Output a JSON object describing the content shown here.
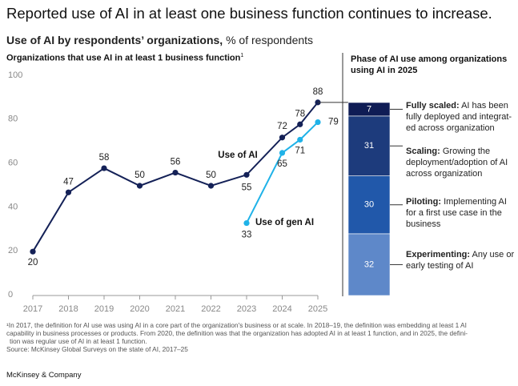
{
  "header": {
    "title": "Reported use of AI in at least one business function continues to increase.",
    "subtitle_bold": "Use of AI by respondents’ organizations,",
    "subtitle_rest": "% of respondents"
  },
  "chart_data": [
    {
      "type": "line",
      "title": "Organizations that use AI in at least 1 business function",
      "title_note": "1",
      "xlim": [
        2017,
        2025
      ],
      "xticks": [
        2017,
        2018,
        2019,
        2020,
        2021,
        2022,
        2023,
        2024,
        2025
      ],
      "ylim": [
        0,
        100
      ],
      "yticks": [
        0,
        20,
        40,
        60,
        80,
        100
      ],
      "grid": false,
      "series": [
        {
          "name": "Use of AI",
          "color": "#142157",
          "x": [
            2017,
            2018,
            2019,
            2020,
            2021,
            2022,
            2023,
            2024,
            2024.5,
            2025
          ],
          "values": [
            20,
            47,
            58,
            50,
            56,
            50,
            55,
            72,
            78,
            88
          ]
        },
        {
          "name": "Use of gen AI",
          "color": "#1fb2e8",
          "x": [
            2023,
            2024,
            2024.5,
            2025
          ],
          "values": [
            33,
            65,
            71,
            79
          ]
        }
      ]
    },
    {
      "type": "stacked_bar",
      "title": "Phase of AI use among organizations using AI in 2025",
      "series": [
        {
          "name": "Experimenting:",
          "description": "Any use or early testing of AI",
          "color": "#5e88c9",
          "values": [
            32
          ]
        },
        {
          "name": "Piloting:",
          "description": "Implementing AI for a first use case in the business",
          "color": "#2158aa",
          "values": [
            30
          ]
        },
        {
          "name": "Scaling:",
          "description": "Growing the deployment/adoption of AI across organization",
          "color": "#1d3b7c",
          "values": [
            31
          ]
        },
        {
          "name": "Fully scaled:",
          "description": "AI has been fully deployed and integrat-ed across organization",
          "color": "#0f1c55",
          "values": [
            7
          ]
        }
      ]
    }
  ],
  "footnote": [
    "¹In 2017, the definition for AI use was using AI in a core part of the organization's business or at scale. In 2018–19, the definition was embedding at least 1 AI",
    "capability in business processes or products. From 2020, the definition was that the organization has adopted AI in at least 1 function, and in 2025, the defini-",
    "tion was regular use of AI in at least 1 function."
  ],
  "source": "Source: McKinsey Global Surveys on the state of AI, 2017–25",
  "brand": "McKinsey & Company"
}
